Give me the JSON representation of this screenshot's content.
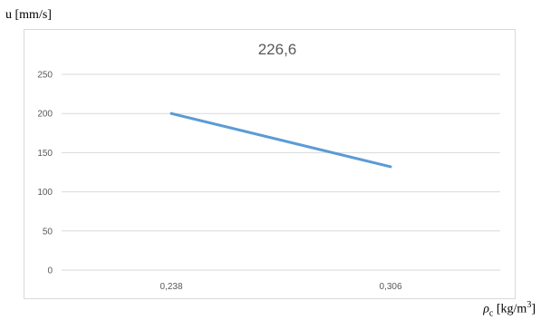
{
  "chart_data": {
    "type": "line",
    "title": "226,6",
    "ylabel": "u [mm/s]",
    "xlabel": {
      "symbol": "ρ",
      "subscript": "c",
      "unit_prefix": "[kg/m",
      "unit_sup": "3",
      "unit_suffix": "]"
    },
    "categories": [
      "0,238",
      "0,306"
    ],
    "series": [
      {
        "values": [
          200,
          132
        ]
      }
    ],
    "yticks": [
      "0",
      "50",
      "100",
      "150",
      "200",
      "250"
    ],
    "ylim": [
      0,
      250
    ],
    "grid": true,
    "legend": "none",
    "line_color": "#5b9bd5",
    "grid_color": "#d9d9d9",
    "text_color": "#595959"
  }
}
